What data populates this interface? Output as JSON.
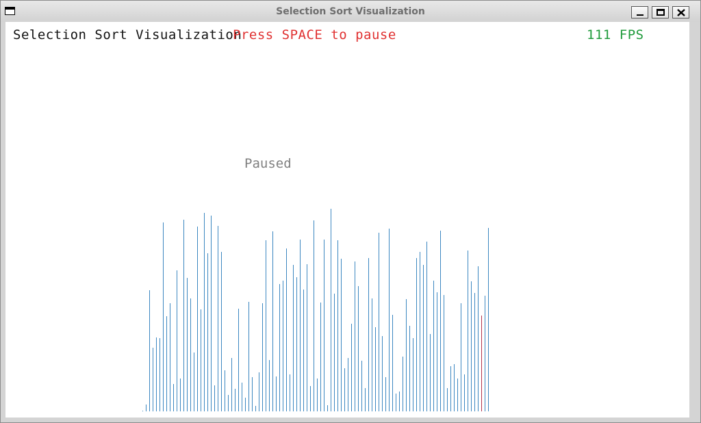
{
  "window": {
    "title": "Selection Sort Visualization"
  },
  "hud": {
    "title": "Selection Sort Visualization",
    "hint": "Press SPACE to pause",
    "fps": "111 FPS"
  },
  "status": {
    "paused_label": "Paused"
  },
  "colors": {
    "bar": "#3a86c0",
    "highlight": "#b0304a",
    "hint": "#e03030",
    "fps": "#1e9a3a",
    "paused": "#808080"
  },
  "chart_data": {
    "type": "bar",
    "ylim": [
      0,
      300
    ],
    "highlight_index": 99,
    "values": [
      1,
      10,
      177,
      93,
      108,
      107,
      276,
      139,
      158,
      40,
      206,
      48,
      280,
      195,
      165,
      86,
      270,
      149,
      290,
      231,
      286,
      38,
      271,
      233,
      60,
      24,
      78,
      33,
      150,
      42,
      20,
      160,
      50,
      8,
      57,
      158,
      250,
      75,
      263,
      51,
      186,
      191,
      238,
      54,
      214,
      196,
      251,
      178,
      215,
      37,
      279,
      48,
      159,
      251,
      9,
      296,
      172,
      250,
      223,
      63,
      78,
      128,
      219,
      183,
      74,
      34,
      224,
      165,
      123,
      261,
      110,
      50,
      267,
      141,
      26,
      29,
      80,
      164,
      125,
      107,
      224,
      233,
      214,
      248,
      113,
      191,
      174,
      264,
      170,
      34,
      66,
      69,
      48,
      158,
      54,
      235,
      190,
      173,
      212,
      140,
      169,
      268
    ]
  }
}
